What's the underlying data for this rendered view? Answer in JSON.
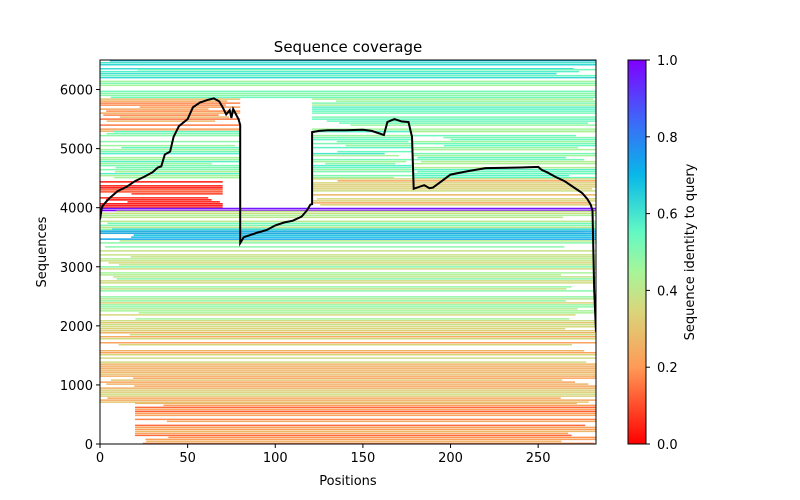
{
  "chart_data": {
    "type": "heatmap",
    "title": "Sequence coverage",
    "xlabel": "Positions",
    "ylabel": "Sequences",
    "xlim": [
      0,
      283
    ],
    "ylim": [
      0,
      6500
    ],
    "xticks": [
      0,
      50,
      100,
      150,
      200,
      250
    ],
    "yticks": [
      0,
      1000,
      2000,
      3000,
      4000,
      5000,
      6000
    ],
    "grid": false,
    "colorbar": {
      "label": "Sequence identity to query",
      "range": [
        0.0,
        1.0
      ],
      "ticks": [
        "0.0",
        "0.2",
        "0.4",
        "0.6",
        "0.8",
        "1.0"
      ],
      "colormap": "rainbow_r",
      "stops": [
        {
          "v": 0.0,
          "color": "#ff0000"
        },
        {
          "v": 0.2,
          "color": "#ff9a56"
        },
        {
          "v": 0.35,
          "color": "#d8d77c"
        },
        {
          "v": 0.45,
          "color": "#a6f59a"
        },
        {
          "v": 0.55,
          "color": "#64f9c3"
        },
        {
          "v": 0.7,
          "color": "#08b8e8"
        },
        {
          "v": 0.85,
          "color": "#4163f9"
        },
        {
          "v": 1.0,
          "color": "#8000ff"
        }
      ]
    },
    "bands": [
      {
        "y0": 6350,
        "y1": 6500,
        "x0": 0,
        "x1": 283,
        "identity": 0.66
      },
      {
        "y0": 6150,
        "y1": 6350,
        "x0": 0,
        "x1": 283,
        "identity": 0.58
      },
      {
        "y0": 5850,
        "y1": 6150,
        "x0": 0,
        "x1": 283,
        "identity": 0.5
      },
      {
        "y0": 5300,
        "y1": 5850,
        "x0": 0,
        "x1": 80,
        "identity": 0.22
      },
      {
        "y0": 5300,
        "y1": 5850,
        "x0": 121,
        "x1": 283,
        "identity": 0.5
      },
      {
        "y0": 4500,
        "y1": 5300,
        "x0": 0,
        "x1": 80,
        "identity": 0.5
      },
      {
        "y0": 4500,
        "y1": 5300,
        "x0": 121,
        "x1": 178,
        "identity": 0.52
      },
      {
        "y0": 4500,
        "y1": 5300,
        "x0": 178,
        "x1": 283,
        "identity": 0.5
      },
      {
        "y0": 4000,
        "y1": 4450,
        "x0": 0,
        "x1": 70,
        "identity": 0.06
      },
      {
        "y0": 4000,
        "y1": 4500,
        "x0": 121,
        "x1": 283,
        "identity": 0.3
      },
      {
        "y0": 3950,
        "y1": 4000,
        "x0": 0,
        "x1": 283,
        "identity": 0.98
      },
      {
        "y0": 3550,
        "y1": 3950,
        "x0": 0,
        "x1": 283,
        "identity": 0.46
      },
      {
        "y0": 3450,
        "y1": 3650,
        "x0": 0,
        "x1": 283,
        "identity": 0.68
      },
      {
        "y0": 2100,
        "y1": 3450,
        "x0": 0,
        "x1": 283,
        "identity": 0.42
      },
      {
        "y0": 1500,
        "y1": 2100,
        "x0": 0,
        "x1": 283,
        "identity": 0.3
      },
      {
        "y0": 700,
        "y1": 1500,
        "x0": 0,
        "x1": 283,
        "identity": 0.3
      },
      {
        "y0": 0,
        "y1": 700,
        "x0": 20,
        "x1": 283,
        "identity": 0.2
      }
    ],
    "coverage_line": {
      "x": [
        0,
        1,
        2,
        5,
        10,
        15,
        20,
        25,
        30,
        33,
        35,
        37,
        40,
        42,
        45,
        50,
        53,
        57,
        62,
        65,
        68,
        70,
        72,
        74,
        75,
        76,
        79,
        80,
        80,
        82,
        90,
        95,
        100,
        105,
        110,
        115,
        118,
        120,
        121,
        121,
        125,
        130,
        140,
        150,
        155,
        162,
        164,
        168,
        172,
        176,
        178,
        179,
        185,
        188,
        190,
        195,
        200,
        210,
        220,
        240,
        250,
        252,
        255,
        260,
        265,
        270,
        275,
        278,
        280,
        281,
        282,
        283
      ],
      "y": [
        3800,
        4000,
        4050,
        4150,
        4280,
        4350,
        4450,
        4520,
        4600,
        4680,
        4700,
        4900,
        4950,
        5200,
        5380,
        5500,
        5700,
        5780,
        5830,
        5850,
        5800,
        5700,
        5580,
        5650,
        5520,
        5670,
        5500,
        5400,
        3400,
        3500,
        3580,
        3620,
        3700,
        3750,
        3780,
        3850,
        3950,
        4050,
        4060,
        5280,
        5300,
        5310,
        5310,
        5320,
        5300,
        5230,
        5450,
        5500,
        5460,
        5450,
        5200,
        4320,
        4380,
        4330,
        4340,
        4450,
        4560,
        4620,
        4670,
        4680,
        4690,
        4640,
        4600,
        4520,
        4450,
        4350,
        4250,
        4150,
        4050,
        3950,
        2600,
        1900
      ],
      "color": "#000000"
    }
  }
}
